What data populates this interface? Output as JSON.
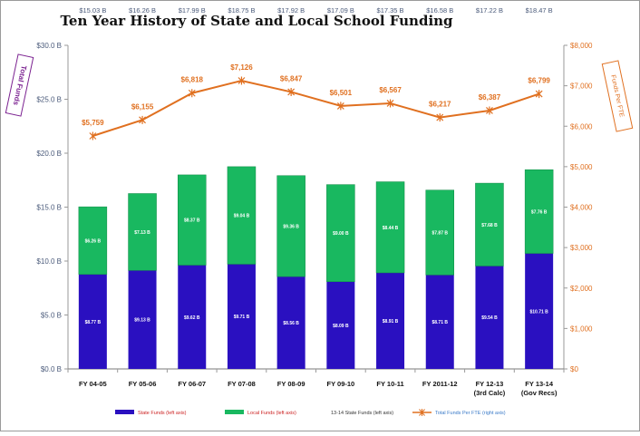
{
  "chart_data": {
    "type": "bar",
    "title": "Ten Year History of State and Local School Funding",
    "categories": [
      "FY 04-05",
      "FY 05-06",
      "FY 06-07",
      "FY 07-08",
      "FY 08-09",
      "FY 09-10",
      "FY 10-11",
      "FY 2011-12",
      "FY 12-13 (3rd Calc)",
      "FY 13-14 (Gov Recs)"
    ],
    "category_lines": [
      [
        "FY 04-05"
      ],
      [
        "FY 05-06"
      ],
      [
        "FY 06-07"
      ],
      [
        "FY 07-08"
      ],
      [
        "FY 08-09"
      ],
      [
        "FY 09-10"
      ],
      [
        "FY 10-11"
      ],
      [
        "FY 2011-12"
      ],
      [
        "FY 12-13",
        "(3rd Calc)"
      ],
      [
        "FY 13-14",
        "(Gov Recs)"
      ]
    ],
    "stacked": true,
    "series": [
      {
        "name": "State Funds (left axis)",
        "axis": "left",
        "color": "#2a10c0",
        "values": [
          8.77,
          9.13,
          9.62,
          9.71,
          8.56,
          8.09,
          8.91,
          8.71,
          9.54,
          10.71
        ],
        "labels": [
          "$8.77 B",
          "$9.13 B",
          "$9.62 B",
          "$9.71 B",
          "$8.56 B",
          "$8.09 B",
          "$8.91 B",
          "$8.71 B",
          "$9.54 B",
          "$10.71 B"
        ]
      },
      {
        "name": "Local Funds (left axis)",
        "axis": "left",
        "color": "#19b860",
        "values": [
          6.26,
          7.13,
          8.37,
          9.04,
          9.36,
          9.0,
          8.44,
          7.87,
          7.68,
          7.76
        ],
        "labels": [
          "$6.26 B",
          "$7.13 B",
          "$8.37 B",
          "$9.04 B",
          "$9.36 B",
          "$9.00 B",
          "$8.44 B",
          "$7.87 B",
          "$7.68 B",
          "$7.76 B"
        ]
      },
      {
        "name": "Total Funds Per FTE (right axis)",
        "type": "line",
        "axis": "right",
        "color": "#e07020",
        "values": [
          5759,
          6155,
          6818,
          7126,
          6847,
          6501,
          6567,
          6217,
          6387,
          6799
        ],
        "labels": [
          "$5,759",
          "$6,155",
          "$6,818",
          "$7,126",
          "$6,847",
          "$6,501",
          "$6,567",
          "$6,217",
          "$6,387",
          "$6,799"
        ]
      }
    ],
    "legend_extra": "13-14 State Funds (left axis)",
    "totals": {
      "values": [
        15.03,
        16.26,
        17.99,
        18.75,
        17.92,
        17.09,
        17.35,
        16.58,
        17.22,
        18.47
      ],
      "labels": [
        "$15.03 B",
        "$16.26 B",
        "$17.99 B",
        "$18.75 B",
        "$17.92 B",
        "$17.09 B",
        "$17.35 B",
        "$16.58 B",
        "$17.22 B",
        "$18.47 B"
      ]
    },
    "left_axis": {
      "label": "Total Funds",
      "ylim": [
        0,
        30
      ],
      "ticks": [
        0,
        5,
        10,
        15,
        20,
        25,
        30
      ],
      "tick_labels": [
        "$0.0 B",
        "$5.0 B",
        "$10.0 B",
        "$15.0 B",
        "$20.0 B",
        "$25.0 B",
        "$30.0 B"
      ]
    },
    "right_axis": {
      "label": "Funds Per FTE",
      "ylim": [
        0,
        8000
      ],
      "ticks": [
        0,
        1000,
        2000,
        3000,
        4000,
        5000,
        6000,
        7000,
        8000
      ],
      "tick_labels": [
        "$0",
        "$1,000",
        "$2,000",
        "$3,000",
        "$4,000",
        "$5,000",
        "$6,000",
        "$7,000",
        "$8,000"
      ]
    },
    "legend_position": "bottom"
  }
}
